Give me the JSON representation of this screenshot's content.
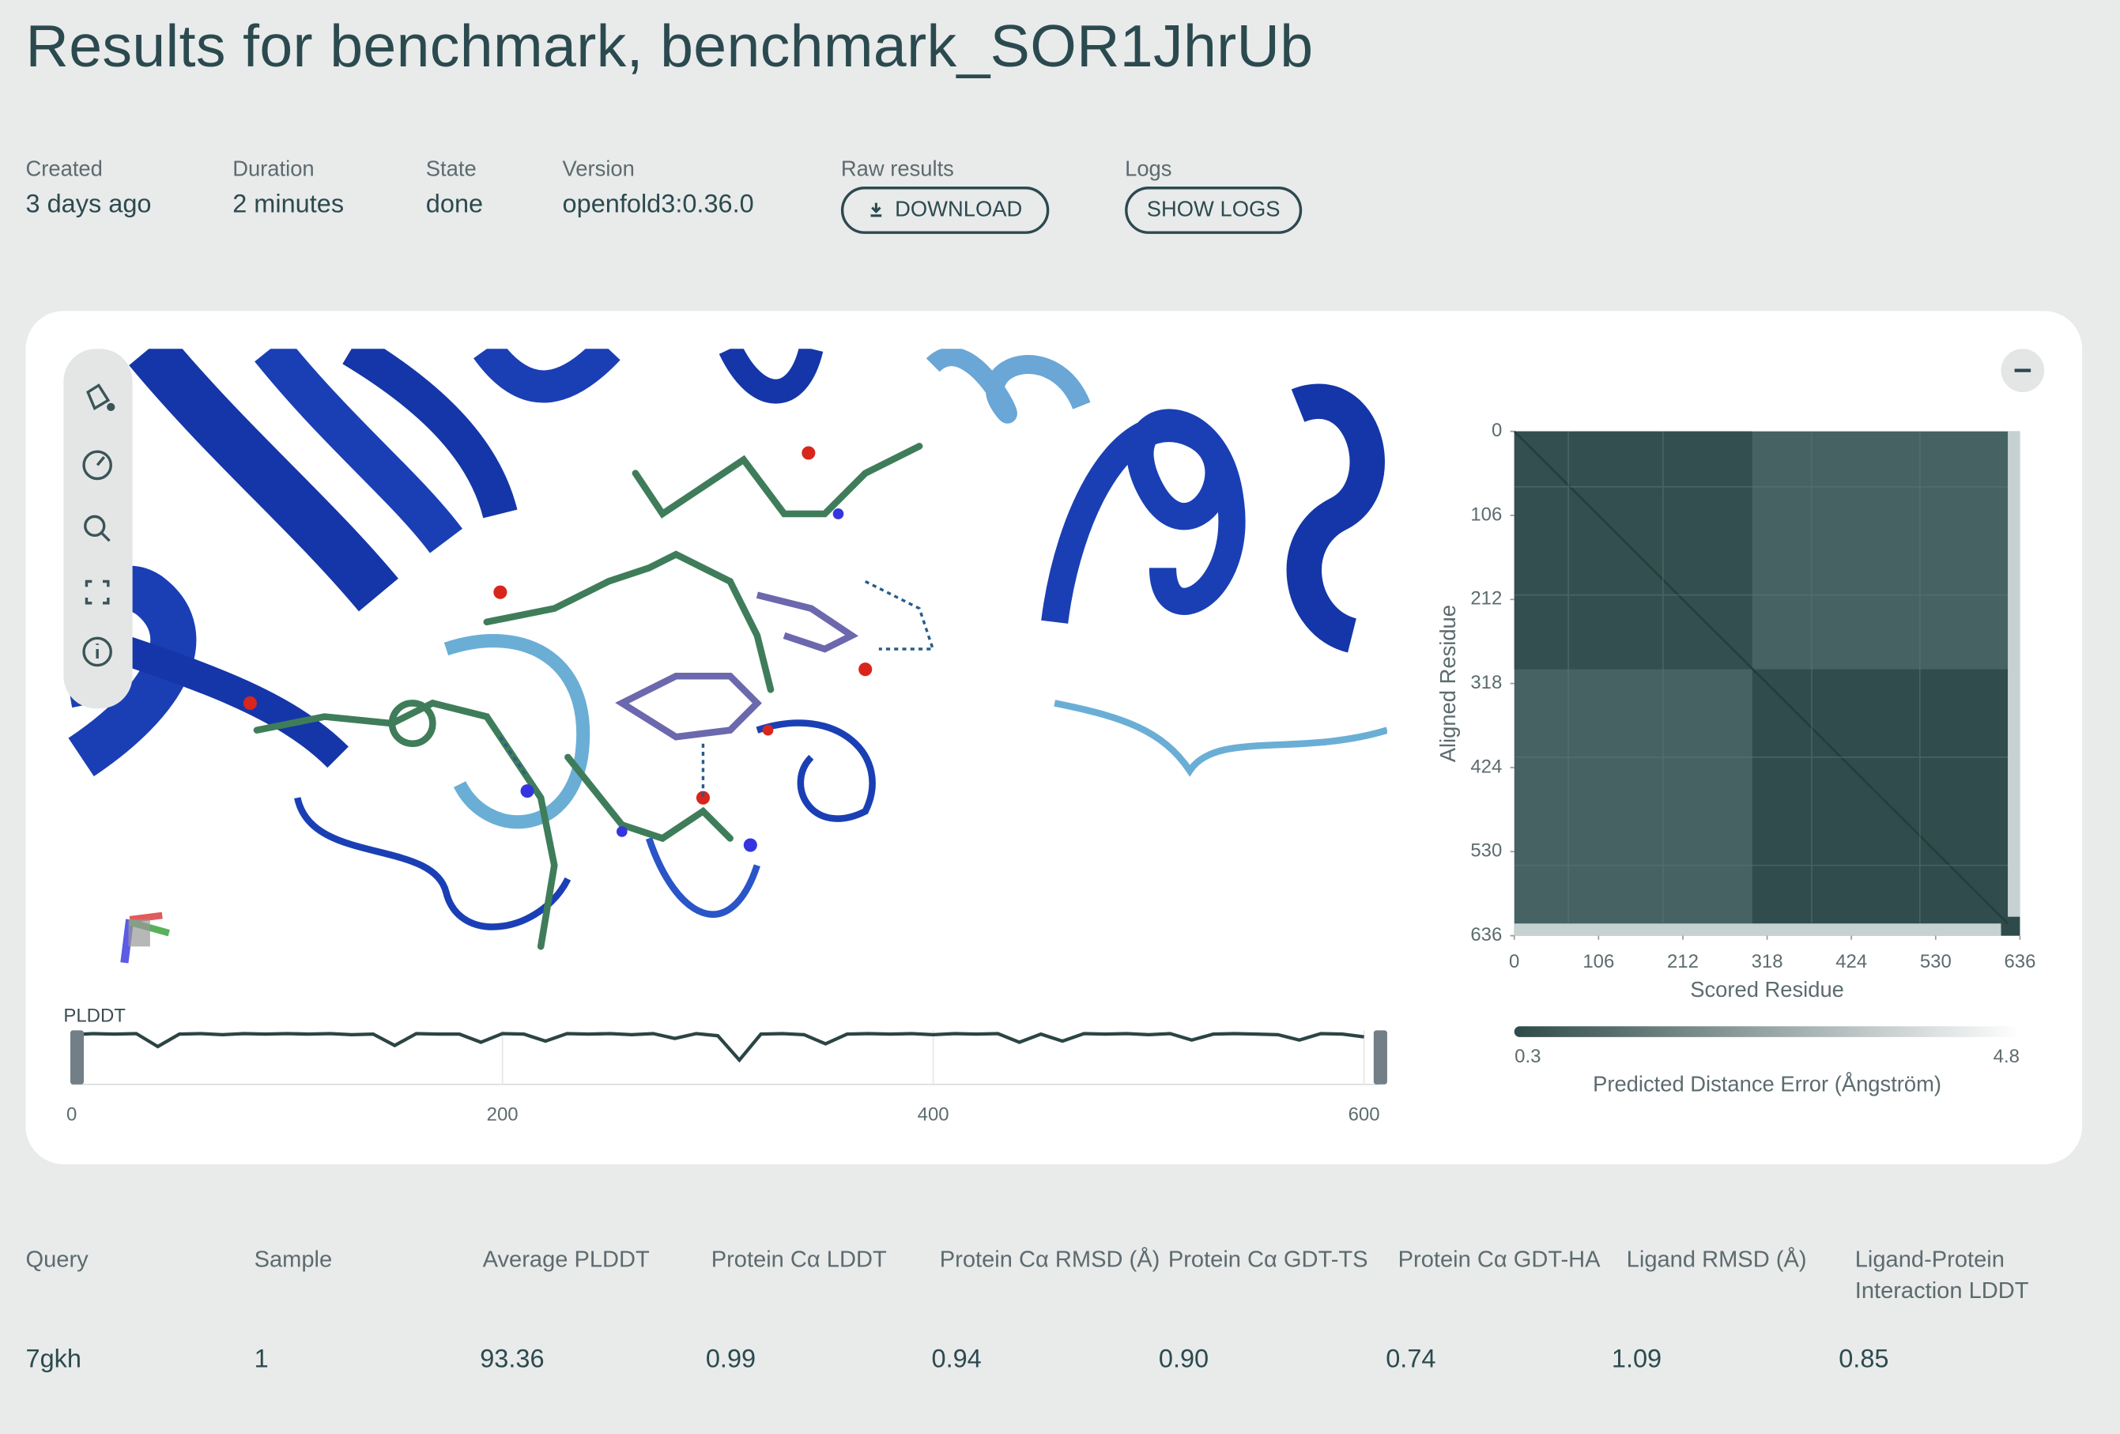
{
  "header": {
    "title": "Results for benchmark, benchmark_SOR1JhrUb"
  },
  "meta": [
    {
      "label": "Created",
      "value": "3 days ago"
    },
    {
      "label": "Duration",
      "value": "2 minutes"
    },
    {
      "label": "State",
      "value": "done"
    },
    {
      "label": "Version",
      "value": "openfold3:0.36.0"
    },
    {
      "label": "Raw results",
      "button": "DOWNLOAD"
    },
    {
      "label": "Logs",
      "button": "SHOW LOGS"
    }
  ],
  "chart_data": [
    {
      "type": "line",
      "title": "PLDDT",
      "color": "#2b4444",
      "x": [
        0,
        10,
        20,
        30,
        40,
        50,
        60,
        70,
        80,
        90,
        100,
        110,
        120,
        130,
        140,
        150,
        160,
        170,
        180,
        190,
        200,
        210,
        220,
        230,
        240,
        250,
        260,
        270,
        280,
        290,
        300,
        310,
        320,
        330,
        340,
        350,
        360,
        370,
        380,
        390,
        400,
        410,
        420,
        430,
        440,
        450,
        460,
        470,
        480,
        490,
        500,
        510,
        520,
        530,
        540,
        550,
        560,
        570,
        580,
        590,
        600
      ],
      "values": [
        92,
        94,
        93,
        94,
        70,
        93,
        94,
        92,
        94,
        93,
        94,
        93,
        94,
        92,
        93,
        72,
        94,
        93,
        93,
        78,
        94,
        93,
        80,
        94,
        93,
        94,
        92,
        94,
        85,
        94,
        90,
        45,
        93,
        94,
        92,
        75,
        93,
        94,
        93,
        94,
        92,
        94,
        93,
        94,
        78,
        93,
        80,
        94,
        93,
        94,
        92,
        94,
        82,
        93,
        94,
        93,
        92,
        82,
        94,
        93,
        88
      ],
      "xlim": [
        0,
        607
      ],
      "ylim": [
        0,
        100
      ],
      "xticks": [
        0,
        200,
        400,
        600
      ],
      "grid": true
    },
    {
      "type": "heatmap",
      "xlabel": "Scored Residue",
      "ylabel": "Aligned Residue",
      "xlim": [
        0,
        636
      ],
      "ylim": [
        0,
        636
      ],
      "xticks": [
        0,
        106,
        212,
        318,
        424,
        530,
        636
      ],
      "yticks": [
        0,
        106,
        212,
        318,
        424,
        530,
        636
      ],
      "colorbar": {
        "label": "Predicted Distance Error (Ångström)",
        "range": [
          0.3,
          4.8
        ],
        "colors": [
          "#2f4a4a",
          "#ffffff"
        ]
      }
    }
  ],
  "table": {
    "headers": [
      "Query",
      "Sample",
      "Average PLDDT",
      "Protein Cα LDDT",
      "Protein Cα RMSD (Å)",
      "Protein Cα GDT-TS",
      "Protein Cα GDT-HA",
      "Ligand RMSD (Å)",
      "Ligand-Protein Interaction LDDT"
    ],
    "rows": [
      [
        "7gkh",
        "1",
        "93.36",
        "0.99",
        "0.94",
        "0.90",
        "0.74",
        "1.09",
        "0.85"
      ]
    ]
  }
}
